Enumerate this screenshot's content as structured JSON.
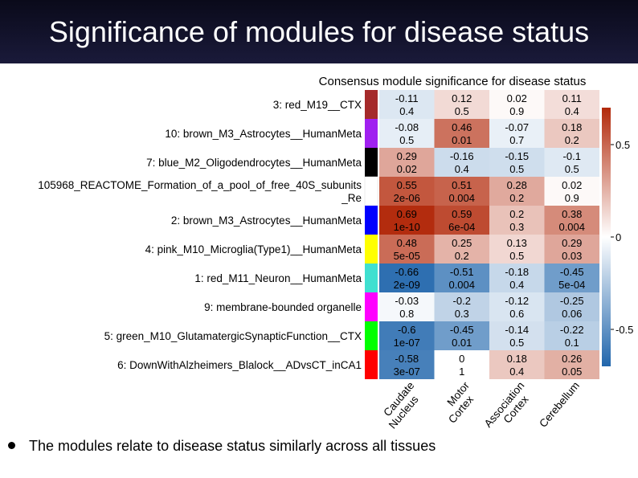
{
  "slide": {
    "title": "Significance of modules for disease status",
    "bullet": "The modules relate to disease status similarly across all tissues"
  },
  "chart_data": {
    "type": "heatmap",
    "title": "Consensus module significance for disease status",
    "columns": [
      "Caudate\nNucleus",
      "Motor\nCortex",
      "Association\nCortex",
      "Cerebellum"
    ],
    "rows": [
      {
        "label": "3: red_M19__CTX",
        "color": "#a52a2a",
        "values": [
          -0.11,
          0.12,
          0.02,
          0.11
        ],
        "pvalues": [
          "0.4",
          "0.5",
          "0.9",
          "0.4"
        ]
      },
      {
        "label": "10: brown_M3_Astrocytes__HumanMeta",
        "color": "#a020f0",
        "values": [
          -0.08,
          0.46,
          -0.07,
          0.18
        ],
        "pvalues": [
          "0.5",
          "0.01",
          "0.7",
          "0.2"
        ]
      },
      {
        "label": "7: blue_M2_Oligodendrocytes__HumanMeta",
        "color": "#000000",
        "values": [
          0.29,
          -0.16,
          -0.15,
          -0.1
        ],
        "pvalues": [
          "0.02",
          "0.4",
          "0.5",
          "0.5"
        ]
      },
      {
        "label": "105968_REACTOME_Formation_of_a_pool_of_free_40S_subunits\n_Re",
        "color": "#ffffff",
        "values": [
          0.55,
          0.51,
          0.28,
          0.02
        ],
        "pvalues": [
          "2e-06",
          "0.004",
          "0.2",
          "0.9"
        ]
      },
      {
        "label": "2: brown_M3_Astrocytes__HumanMeta",
        "color": "#0000ff",
        "values": [
          0.69,
          0.59,
          0.2,
          0.38
        ],
        "pvalues": [
          "1e-10",
          "6e-04",
          "0.3",
          "0.004"
        ]
      },
      {
        "label": "4: pink_M10_Microglia(Type1)__HumanMeta",
        "color": "#ffff00",
        "values": [
          0.48,
          0.25,
          0.13,
          0.29
        ],
        "pvalues": [
          "5e-05",
          "0.2",
          "0.5",
          "0.03"
        ]
      },
      {
        "label": "1: red_M11_Neuron__HumanMeta",
        "color": "#40e0d0",
        "values": [
          -0.66,
          -0.51,
          -0.18,
          -0.45
        ],
        "pvalues": [
          "2e-09",
          "0.004",
          "0.4",
          "5e-04"
        ]
      },
      {
        "label": "9: membrane-bounded organelle",
        "color": "#ff00ff",
        "values": [
          -0.03,
          -0.2,
          -0.12,
          -0.25
        ],
        "pvalues": [
          "0.8",
          "0.3",
          "0.6",
          "0.06"
        ]
      },
      {
        "label": "5: green_M10_GlutamatergicSynapticFunction__CTX",
        "color": "#00ff00",
        "values": [
          -0.6,
          -0.45,
          -0.14,
          -0.22
        ],
        "pvalues": [
          "1e-07",
          "0.01",
          "0.5",
          "0.1"
        ]
      },
      {
        "label": "6: DownWithAlzheimers_Blalock__ADvsCT_inCA1",
        "color": "#ff0000",
        "values": [
          -0.58,
          0,
          0.18,
          0.26
        ],
        "pvalues": [
          "3e-07",
          "1",
          "0.4",
          "0.05"
        ]
      }
    ],
    "colorbar": {
      "ticks": [
        "0.5",
        "0",
        "-0.5"
      ],
      "tick_values": [
        0.5,
        0,
        -0.5
      ],
      "range": [
        -0.7,
        0.7
      ],
      "low_color": "#2166ac",
      "mid_color": "#ffffff",
      "high_color": "#b2290a"
    }
  }
}
